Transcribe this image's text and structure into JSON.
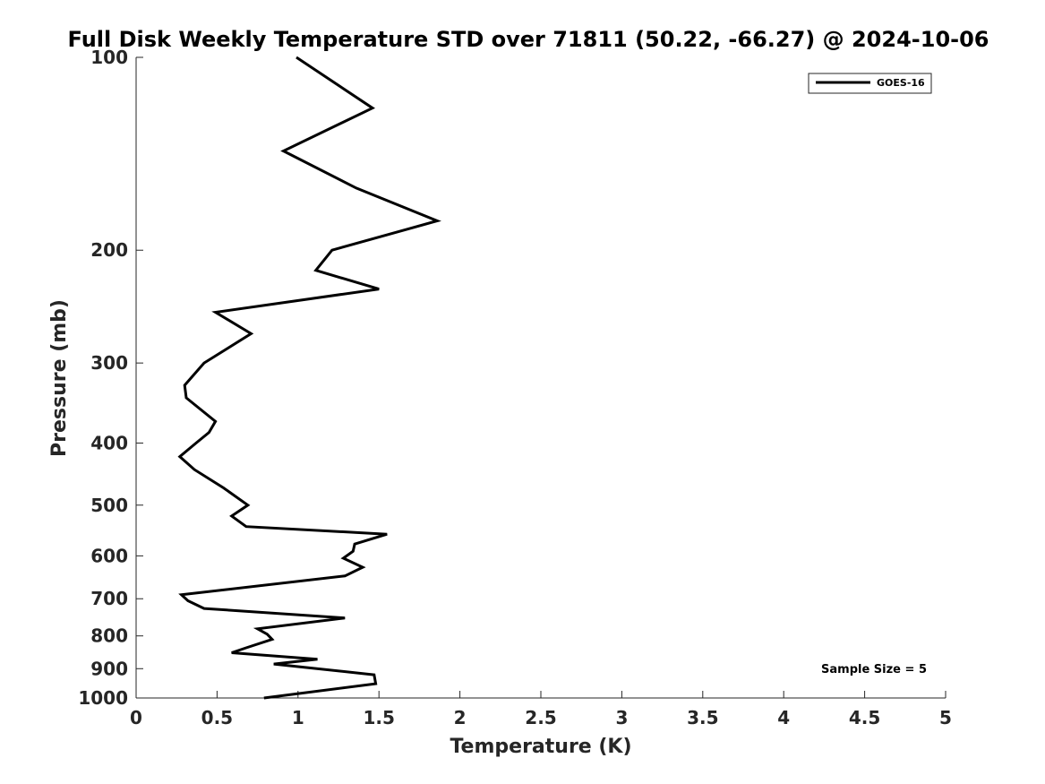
{
  "chart_data": {
    "type": "line",
    "title": "Full Disk Weekly Temperature STD over 71811 (50.22, -66.27) @ 2024-10-06",
    "xlabel": "Temperature (K)",
    "ylabel": "Pressure (mb)",
    "xlim": [
      0,
      5
    ],
    "ylim": [
      100,
      1000
    ],
    "y_scale": "log",
    "y_reversed": true,
    "x_ticks": [
      "0",
      "0.5",
      "1",
      "1.5",
      "2",
      "2.5",
      "3",
      "3.5",
      "4",
      "4.5",
      "5"
    ],
    "y_ticks": [
      "100",
      "200",
      "300",
      "400",
      "500",
      "600",
      "700",
      "800",
      "900",
      "1000"
    ],
    "legend_position": "top-right",
    "grid": false,
    "series": [
      {
        "name": "GOES-16",
        "color": "#000000",
        "x": [
          0.99,
          1.46,
          0.91,
          1.36,
          1.86,
          1.21,
          1.11,
          1.5,
          0.49,
          0.71,
          0.42,
          0.3,
          0.31,
          0.49,
          0.45,
          0.37,
          0.27,
          0.36,
          0.54,
          0.69,
          0.59,
          0.68,
          1.55,
          1.35,
          1.34,
          1.28,
          1.4,
          1.29,
          0.28,
          0.32,
          0.42,
          1.29,
          0.75,
          0.81,
          0.84,
          0.68,
          0.59,
          1.12,
          0.85,
          1.47,
          1.48,
          0.79
        ],
        "y": [
          100,
          120,
          140,
          160,
          180,
          200,
          215,
          230,
          250,
          270,
          300,
          325,
          340,
          370,
          385,
          400,
          420,
          440,
          470,
          500,
          520,
          540,
          555,
          575,
          590,
          605,
          625,
          645,
          690,
          705,
          725,
          750,
          780,
          795,
          810,
          835,
          850,
          870,
          885,
          920,
          950,
          1000
        ]
      }
    ],
    "annotation": "Sample Size = 5"
  }
}
